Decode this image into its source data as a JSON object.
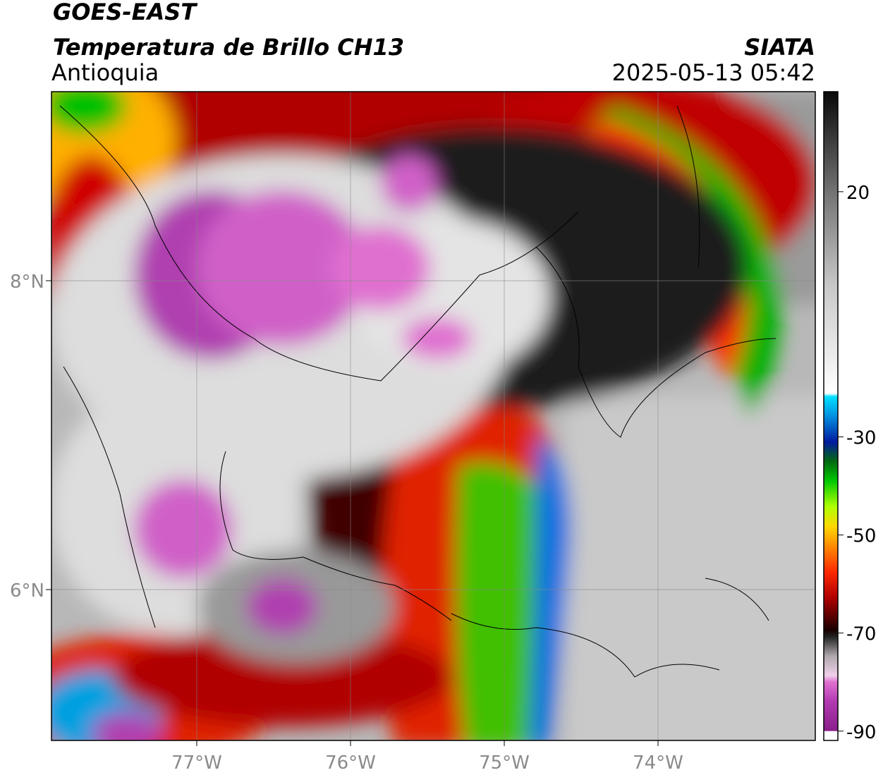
{
  "header": {
    "title": "GOES-EAST",
    "subtitle": "Temperatura de Brillo CH13",
    "region": "Antioquia",
    "source": "SIATA",
    "datetime": "2025-05-13 05:42"
  },
  "map": {
    "xlim": [
      -77.945,
      -72.977
    ],
    "ylim": [
      5.023,
      9.224
    ],
    "xticks": [
      {
        "value": -77,
        "label": "77°W"
      },
      {
        "value": -76,
        "label": "76°W"
      },
      {
        "value": -75,
        "label": "75°W"
      },
      {
        "value": -74,
        "label": "74°W"
      }
    ],
    "yticks": [
      {
        "value": 6,
        "label": "6°N"
      },
      {
        "value": 8,
        "label": "8°N"
      }
    ],
    "grid": true
  },
  "colorbar": {
    "lim": [
      -91.9,
      40.4
    ],
    "ticks": [
      20,
      -30,
      -50,
      -70,
      -90
    ]
  }
}
